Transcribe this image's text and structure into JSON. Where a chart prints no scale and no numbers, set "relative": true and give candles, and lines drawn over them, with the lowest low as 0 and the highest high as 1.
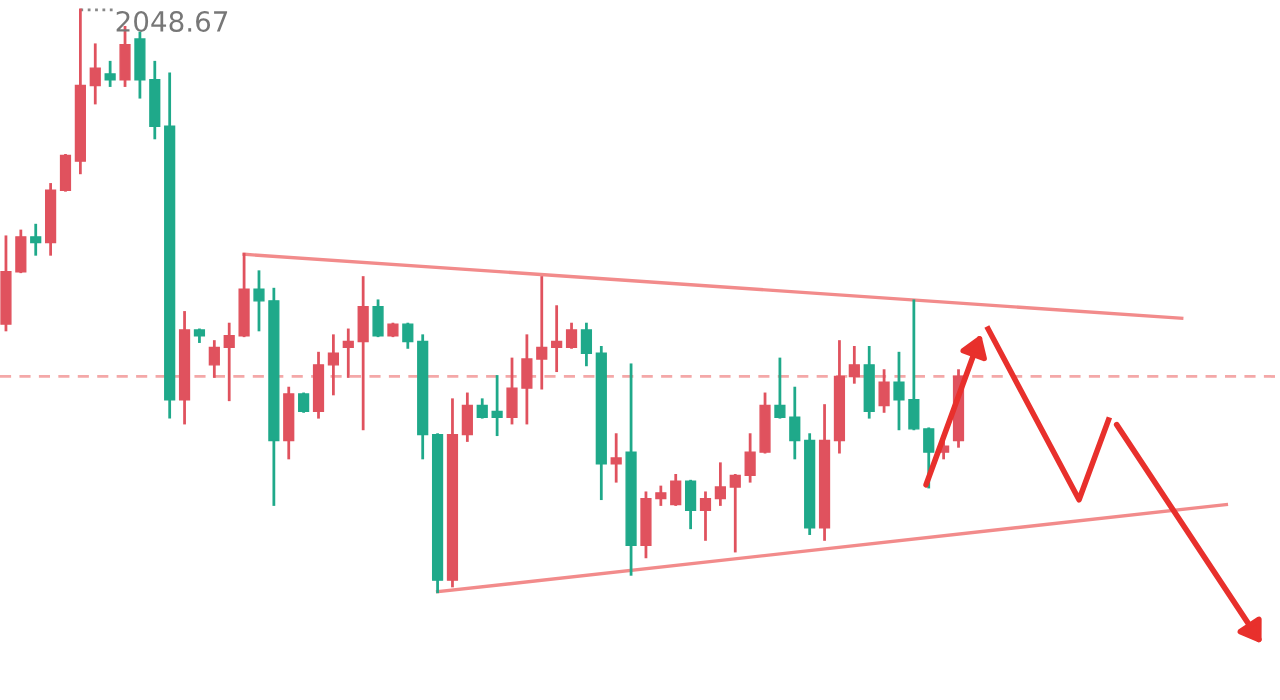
{
  "chart_data": {
    "type": "candlestick",
    "relative": true,
    "categories": [
      null,
      null,
      null,
      null,
      null,
      null,
      null,
      null,
      null,
      null,
      null,
      null,
      null,
      null,
      null,
      null,
      null,
      null,
      null,
      null,
      null,
      null,
      null,
      null,
      null,
      null,
      null,
      null,
      null,
      null,
      null,
      null,
      null,
      null,
      null,
      null,
      null,
      null,
      null,
      null,
      null,
      null,
      null,
      null,
      null,
      null,
      null,
      null,
      null,
      null,
      null,
      null,
      null,
      null,
      null,
      null,
      null,
      null,
      null,
      null,
      null,
      null,
      null,
      null,
      null,
      null,
      null,
      null,
      null,
      null,
      null,
      null,
      null,
      null,
      null,
      null,
      null,
      null,
      null,
      null,
      null,
      null,
      null,
      null,
      null,
      null
    ],
    "ohlc": [
      [
        0.46,
        0.61,
        0.45,
        0.55
      ],
      [
        0.55,
        0.62,
        0.55,
        0.61
      ],
      [
        0.61,
        0.63,
        0.58,
        0.6
      ],
      [
        0.6,
        0.7,
        0.58,
        0.69
      ],
      [
        0.69,
        0.75,
        0.69,
        0.75
      ],
      [
        0.74,
        1.0,
        0.72,
        0.87
      ],
      [
        0.87,
        0.94,
        0.84,
        0.9
      ],
      [
        0.89,
        0.91,
        0.87,
        0.88
      ],
      [
        0.88,
        0.97,
        0.87,
        0.94
      ],
      [
        0.95,
        0.96,
        0.85,
        0.88
      ],
      [
        0.88,
        0.91,
        0.78,
        0.8
      ],
      [
        0.8,
        0.89,
        0.3,
        0.33
      ],
      [
        0.33,
        0.48,
        0.29,
        0.45
      ],
      [
        0.45,
        0.45,
        0.43,
        0.44
      ],
      [
        0.39,
        0.43,
        0.37,
        0.42
      ],
      [
        0.42,
        0.46,
        0.33,
        0.44
      ],
      [
        0.44,
        0.58,
        0.44,
        0.52
      ],
      [
        0.52,
        0.55,
        0.45,
        0.5
      ],
      [
        0.5,
        0.52,
        0.15,
        0.26
      ],
      [
        0.26,
        0.35,
        0.23,
        0.34
      ],
      [
        0.34,
        0.34,
        0.31,
        0.31
      ],
      [
        0.31,
        0.41,
        0.3,
        0.39
      ],
      [
        0.39,
        0.44,
        0.34,
        0.41
      ],
      [
        0.42,
        0.45,
        0.37,
        0.43
      ],
      [
        0.43,
        0.54,
        0.28,
        0.49
      ],
      [
        0.49,
        0.5,
        0.44,
        0.44
      ],
      [
        0.44,
        0.46,
        0.44,
        0.46
      ],
      [
        0.46,
        0.46,
        0.42,
        0.43
      ],
      [
        0.43,
        0.44,
        0.23,
        0.27
      ],
      [
        0.27,
        0.27,
        0.0,
        0.02
      ],
      [
        0.02,
        0.33,
        0.01,
        0.27
      ],
      [
        0.27,
        0.34,
        0.26,
        0.32
      ],
      [
        0.32,
        0.33,
        0.3,
        0.3
      ],
      [
        0.31,
        0.37,
        0.27,
        0.3
      ],
      [
        0.3,
        0.4,
        0.29,
        0.35
      ],
      [
        0.35,
        0.44,
        0.29,
        0.4
      ],
      [
        0.4,
        0.54,
        0.35,
        0.42
      ],
      [
        0.42,
        0.49,
        0.38,
        0.43
      ],
      [
        0.42,
        0.46,
        0.42,
        0.45
      ],
      [
        0.45,
        0.46,
        0.39,
        0.41
      ],
      [
        0.41,
        0.42,
        0.16,
        0.22
      ],
      [
        0.22,
        0.27,
        0.19,
        0.23
      ],
      [
        0.24,
        0.39,
        0.03,
        0.08
      ],
      [
        0.08,
        0.17,
        0.06,
        0.16
      ],
      [
        0.16,
        0.18,
        0.15,
        0.17
      ],
      [
        0.15,
        0.2,
        0.15,
        0.19
      ],
      [
        0.19,
        0.19,
        0.11,
        0.14
      ],
      [
        0.14,
        0.17,
        0.09,
        0.16
      ],
      [
        0.16,
        0.22,
        0.15,
        0.18
      ],
      [
        0.18,
        0.2,
        0.07,
        0.2
      ],
      [
        0.2,
        0.27,
        0.19,
        0.24
      ],
      [
        0.24,
        0.34,
        0.24,
        0.32
      ],
      [
        0.32,
        0.4,
        0.3,
        0.3
      ],
      [
        0.3,
        0.35,
        0.23,
        0.26
      ],
      [
        0.26,
        0.27,
        0.1,
        0.11
      ],
      [
        0.11,
        0.32,
        0.09,
        0.26
      ],
      [
        0.26,
        0.43,
        0.24,
        0.37
      ],
      [
        0.37,
        0.42,
        0.36,
        0.39
      ],
      [
        0.39,
        0.42,
        0.3,
        0.31
      ],
      [
        0.32,
        0.38,
        0.31,
        0.36
      ],
      [
        0.36,
        0.41,
        0.28,
        0.33
      ],
      [
        0.33,
        0.5,
        0.28,
        0.28
      ],
      [
        0.28,
        0.28,
        0.18,
        0.24
      ],
      [
        0.24,
        0.26,
        0.23,
        0.25
      ],
      [
        0.26,
        0.38,
        0.25,
        0.37
      ],
      null,
      null,
      null,
      null,
      null,
      null,
      null,
      null,
      null,
      null,
      null,
      null,
      null,
      null,
      null,
      null,
      null,
      null,
      null,
      null,
      null
    ],
    "colors": [
      "#e0525e",
      "#e0525e",
      "#1fa98a",
      "#e0525e",
      "#e0525e",
      "#e0525e",
      "#e0525e",
      "#1fa98a",
      "#e0525e",
      "#1fa98a",
      "#1fa98a",
      "#1fa98a",
      "#e0525e",
      "#1fa98a",
      "#e0525e",
      "#e0525e",
      "#e0525e",
      "#1fa98a",
      "#1fa98a",
      "#e0525e",
      "#1fa98a",
      "#e0525e",
      "#e0525e",
      "#e0525e",
      "#e0525e",
      "#1fa98a",
      "#e0525e",
      "#1fa98a",
      "#1fa98a",
      "#1fa98a",
      "#e0525e",
      "#e0525e",
      "#1fa98a",
      "#1fa98a",
      "#e0525e",
      "#e0525e",
      "#e0525e",
      "#e0525e",
      "#e0525e",
      "#1fa98a",
      "#1fa98a",
      "#e0525e",
      "#1fa98a",
      "#e0525e",
      "#e0525e",
      "#e0525e",
      "#1fa98a",
      "#e0525e",
      "#e0525e",
      "#e0525e",
      "#e0525e",
      "#e0525e",
      "#1fa98a",
      "#1fa98a",
      "#1fa98a",
      "#e0525e",
      "#e0525e",
      "#e0525e",
      "#1fa98a",
      "#e0525e",
      "#1fa98a",
      "#1fa98a",
      "#1fa98a",
      "#e0525e",
      "#e0525e",
      null,
      null,
      null,
      null,
      null,
      null,
      null,
      null,
      null,
      null,
      null,
      null,
      null,
      null,
      null,
      null,
      null,
      null,
      null,
      null,
      null
    ],
    "series": [
      {
        "type": "line",
        "color": "#f28b8b",
        "values": [
          null,
          null,
          null,
          null,
          null,
          null,
          null,
          null,
          null,
          null,
          null,
          null,
          null,
          null,
          null,
          null,
          0.58,
          null,
          null,
          null,
          null,
          null,
          null,
          null,
          null,
          null,
          null,
          null,
          null,
          null,
          null,
          null,
          null,
          null,
          null,
          null,
          null,
          null,
          null,
          null,
          null,
          null,
          null,
          null,
          null,
          null,
          null,
          null,
          null,
          null,
          null,
          null,
          null,
          null,
          null,
          null,
          null,
          null,
          null,
          null,
          null,
          null,
          null,
          null,
          null,
          null,
          null,
          null,
          null,
          null,
          null,
          null,
          null,
          null,
          null,
          null,
          null,
          null,
          null,
          0.47,
          null,
          null,
          null,
          null,
          null,
          null
        ]
      },
      {
        "type": "line",
        "color": "#f28b8b",
        "values": [
          null,
          null,
          null,
          null,
          null,
          null,
          null,
          null,
          null,
          null,
          null,
          null,
          null,
          null,
          null,
          null,
          null,
          null,
          null,
          null,
          null,
          null,
          null,
          null,
          null,
          null,
          null,
          null,
          null,
          0.0,
          null,
          null,
          null,
          null,
          null,
          null,
          null,
          null,
          null,
          null,
          null,
          null,
          null,
          null,
          null,
          null,
          null,
          null,
          null,
          null,
          null,
          null,
          null,
          null,
          null,
          null,
          null,
          null,
          null,
          null,
          null,
          null,
          null,
          null,
          null,
          null,
          null,
          null,
          null,
          null,
          null,
          null,
          null,
          null,
          null,
          null,
          null,
          null,
          null,
          null,
          null,
          null,
          0.15,
          null,
          null,
          null
        ]
      }
    ],
    "ref_lines": [
      {
        "axis": "y",
        "value": 0.37,
        "color": "#f4a8a8",
        "line_style": "dashed"
      }
    ],
    "annotations": [
      "2048.67"
    ]
  }
}
